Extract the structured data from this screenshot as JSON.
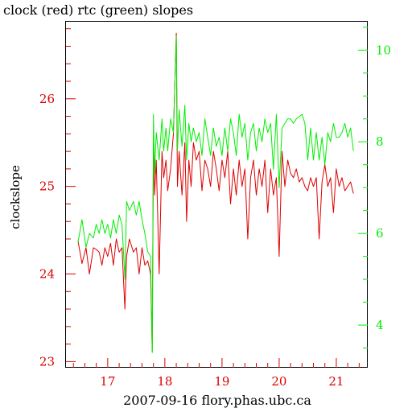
{
  "chart_data": {
    "type": "line",
    "title": "clock (red) rtc (green) slopes",
    "xlabel": "2007-09-16 flory.phas.ubc.ca",
    "ylabel": "clockslope",
    "xlim": [
      16.27,
      21.55
    ],
    "x_ticks": [
      17,
      18,
      19,
      20,
      21
    ],
    "y_left": {
      "ylim": [
        22.93,
        26.88
      ],
      "ticks": [
        23,
        24,
        25,
        26
      ],
      "color": "#dd0000"
    },
    "y_right": {
      "ylim": [
        3.07,
        10.62
      ],
      "ticks": [
        4,
        6,
        8,
        10
      ],
      "color": "#00ee00"
    },
    "grid": false,
    "series": [
      {
        "name": "clock",
        "color": "#dd0000",
        "axis": "left",
        "x": [
          16.48,
          16.55,
          16.62,
          16.68,
          16.75,
          16.8,
          16.85,
          16.9,
          16.95,
          17.0,
          17.05,
          17.1,
          17.15,
          17.2,
          17.25,
          17.3,
          17.33,
          17.38,
          17.45,
          17.5,
          17.55,
          17.6,
          17.65,
          17.7,
          17.75,
          17.78,
          17.8,
          17.82,
          17.85,
          17.9,
          17.95,
          17.98,
          18.02,
          18.05,
          18.1,
          18.15,
          18.2,
          18.22,
          18.25,
          18.3,
          18.35,
          18.38,
          18.42,
          18.46,
          18.5,
          18.55,
          18.6,
          18.65,
          18.7,
          18.75,
          18.8,
          18.85,
          18.9,
          18.95,
          19.0,
          19.05,
          19.1,
          19.15,
          19.2,
          19.25,
          19.3,
          19.35,
          19.4,
          19.45,
          19.5,
          19.55,
          19.6,
          19.65,
          19.7,
          19.75,
          19.8,
          19.85,
          19.9,
          19.95,
          20.0,
          20.05,
          20.1,
          20.15,
          20.2,
          20.25,
          20.3,
          20.35,
          20.4,
          20.45,
          20.5,
          20.55,
          20.6,
          20.65,
          20.7,
          20.75,
          20.8,
          20.85,
          20.9,
          20.95,
          21.0,
          21.05,
          21.1,
          21.15,
          21.2,
          21.25,
          21.3
        ],
        "y": [
          24.38,
          24.12,
          24.3,
          24.0,
          24.3,
          24.28,
          24.25,
          24.1,
          24.3,
          24.2,
          24.35,
          24.1,
          24.4,
          24.25,
          24.3,
          23.6,
          24.2,
          24.4,
          24.25,
          24.3,
          24.0,
          24.3,
          24.1,
          24.15,
          24.0,
          23.12,
          25.5,
          24.9,
          25.3,
          24.0,
          25.4,
          25.1,
          25.3,
          24.95,
          25.2,
          25.6,
          26.75,
          25.0,
          25.4,
          24.9,
          25.5,
          24.6,
          25.3,
          25.0,
          25.5,
          25.3,
          25.4,
          24.95,
          25.3,
          25.2,
          25.0,
          25.4,
          25.2,
          24.95,
          25.3,
          25.1,
          25.4,
          24.8,
          25.2,
          24.9,
          25.3,
          25.0,
          25.2,
          24.4,
          25.1,
          25.3,
          24.9,
          25.2,
          25.0,
          25.3,
          24.7,
          25.2,
          24.9,
          25.1,
          24.2,
          25.4,
          25.0,
          25.3,
          25.15,
          25.1,
          25.2,
          25.05,
          25.1,
          25.0,
          24.95,
          25.1,
          25.0,
          25.1,
          24.4,
          25.05,
          25.25,
          25.0,
          25.1,
          24.7,
          25.2,
          25.0,
          25.1,
          24.95,
          25.0,
          25.05,
          24.92
        ]
      },
      {
        "name": "rtc",
        "color": "#00ee00",
        "axis": "right",
        "x": [
          16.48,
          16.55,
          16.62,
          16.68,
          16.75,
          16.8,
          16.85,
          16.9,
          16.95,
          17.0,
          17.05,
          17.1,
          17.15,
          17.2,
          17.25,
          17.3,
          17.33,
          17.38,
          17.45,
          17.5,
          17.55,
          17.6,
          17.65,
          17.7,
          17.75,
          17.78,
          17.8,
          17.82,
          17.85,
          17.9,
          17.95,
          17.98,
          18.02,
          18.05,
          18.1,
          18.15,
          18.2,
          18.22,
          18.25,
          18.3,
          18.35,
          18.38,
          18.42,
          18.46,
          18.5,
          18.55,
          18.6,
          18.65,
          18.7,
          18.75,
          18.8,
          18.85,
          18.9,
          18.95,
          19.0,
          19.05,
          19.1,
          19.15,
          19.2,
          19.25,
          19.3,
          19.35,
          19.4,
          19.45,
          19.5,
          19.55,
          19.6,
          19.65,
          19.7,
          19.75,
          19.8,
          19.85,
          19.9,
          19.95,
          20.0,
          20.05,
          20.1,
          20.15,
          20.2,
          20.25,
          20.3,
          20.35,
          20.4,
          20.45,
          20.5,
          20.55,
          20.6,
          20.65,
          20.7,
          20.75,
          20.8,
          20.85,
          20.9,
          20.95,
          21.0,
          21.05,
          21.1,
          21.15,
          21.2,
          21.25,
          21.3
        ],
        "y": [
          5.8,
          6.3,
          5.7,
          6.0,
          5.9,
          6.2,
          6.0,
          6.3,
          6.0,
          6.2,
          5.9,
          6.3,
          6.0,
          6.4,
          6.2,
          5.0,
          6.7,
          6.5,
          6.7,
          6.4,
          6.7,
          6.3,
          6.0,
          5.6,
          5.5,
          3.4,
          8.6,
          7.3,
          8.2,
          7.6,
          8.5,
          7.8,
          8.3,
          7.8,
          8.5,
          8.2,
          10.3,
          7.8,
          8.7,
          7.9,
          8.8,
          7.6,
          8.4,
          8.0,
          8.3,
          8.0,
          8.2,
          7.7,
          8.5,
          8.1,
          7.7,
          8.3,
          7.9,
          8.1,
          7.7,
          8.3,
          7.8,
          8.5,
          8.2,
          7.7,
          8.6,
          8.1,
          8.4,
          7.6,
          8.2,
          8.4,
          7.8,
          8.3,
          8.0,
          8.5,
          8.2,
          8.4,
          7.4,
          8.6,
          7.0,
          8.3,
          8.4,
          8.5,
          8.5,
          8.4,
          8.5,
          8.55,
          8.6,
          8.4,
          7.6,
          8.3,
          7.6,
          8.2,
          7.6,
          8.1,
          7.5,
          8.2,
          8.0,
          8.4,
          8.1,
          8.1,
          8.2,
          8.4,
          8.1,
          8.3,
          7.8
        ]
      }
    ]
  }
}
